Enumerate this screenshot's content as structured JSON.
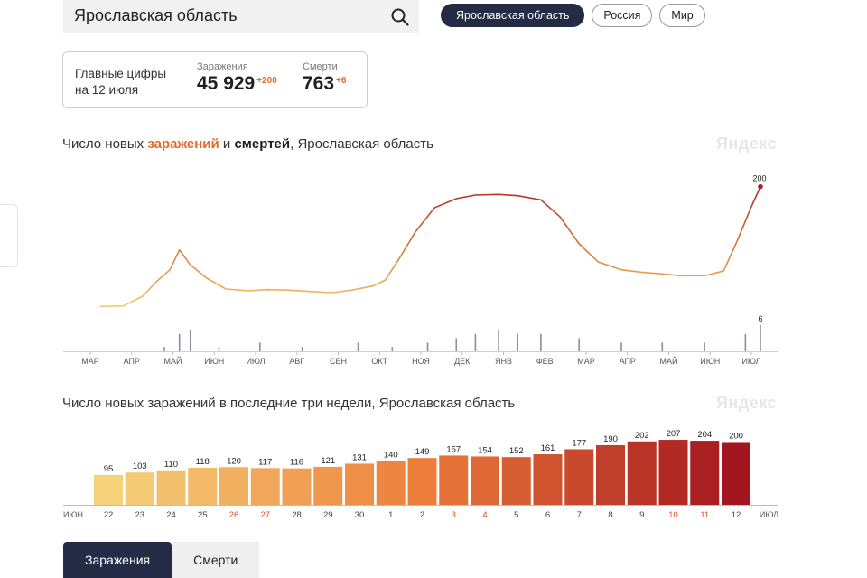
{
  "search": {
    "value": "Ярославская область"
  },
  "region_tabs": [
    {
      "label": "Ярославская область",
      "active": true
    },
    {
      "label": "Россия",
      "active": false
    },
    {
      "label": "Мир",
      "active": false
    }
  ],
  "summary": {
    "label_line1": "Главные цифры",
    "label_line2": "на 12 июля",
    "infections": {
      "title": "Заражения",
      "value": "45 929",
      "delta": "+200"
    },
    "deaths": {
      "title": "Смерти",
      "value": "763",
      "delta": "+6"
    }
  },
  "main_chart": {
    "title_part1": "Число новых ",
    "title_part2": "заражений",
    "title_part3": " и ",
    "title_part4": "смертей",
    "title_part5": ", Ярославская область",
    "watermark": "Яндекс"
  },
  "weeks_chart": {
    "title": "Число новых заражений в последние три недели, Ярославская область",
    "watermark": "Яндекс"
  },
  "bottom_tabs": [
    {
      "label": "Заражения",
      "active": true
    },
    {
      "label": "Смерти",
      "active": false
    }
  ],
  "colors": {
    "accent": "#e8692a",
    "dark": "#232b45",
    "weekend_label": "#e04a2a"
  },
  "chart_data": [
    {
      "type": "line",
      "series": [
        {
          "name": "заражений",
          "points": [
            [
              "2020-03-15",
              1
            ],
            [
              "2020-04-01",
              2
            ],
            [
              "2020-04-15",
              18
            ],
            [
              "2020-04-25",
              42
            ],
            [
              "2020-05-05",
              62
            ],
            [
              "2020-05-12",
              95
            ],
            [
              "2020-05-20",
              70
            ],
            [
              "2020-06-01",
              48
            ],
            [
              "2020-06-15",
              30
            ],
            [
              "2020-07-01",
              27
            ],
            [
              "2020-07-15",
              29
            ],
            [
              "2020-08-01",
              28
            ],
            [
              "2020-08-15",
              26
            ],
            [
              "2020-09-01",
              24
            ],
            [
              "2020-09-15",
              28
            ],
            [
              "2020-10-01",
              35
            ],
            [
              "2020-10-10",
              45
            ],
            [
              "2020-10-20",
              80
            ],
            [
              "2020-11-01",
              125
            ],
            [
              "2020-11-15",
              165
            ],
            [
              "2020-12-01",
              180
            ],
            [
              "2020-12-15",
              186
            ],
            [
              "2021-01-01",
              187
            ],
            [
              "2021-01-15",
              185
            ],
            [
              "2021-02-01",
              178
            ],
            [
              "2021-02-15",
              150
            ],
            [
              "2021-03-01",
              105
            ],
            [
              "2021-03-15",
              75
            ],
            [
              "2021-04-01",
              62
            ],
            [
              "2021-04-15",
              58
            ],
            [
              "2021-05-01",
              55
            ],
            [
              "2021-05-15",
              52
            ],
            [
              "2021-06-01",
              52
            ],
            [
              "2021-06-15",
              60
            ],
            [
              "2021-06-25",
              110
            ],
            [
              "2021-07-05",
              165
            ],
            [
              "2021-07-12",
              200
            ]
          ]
        },
        {
          "name": "смертей",
          "points": [
            [
              "2020-05-01",
              1
            ],
            [
              "2020-05-12",
              4
            ],
            [
              "2020-05-20",
              5
            ],
            [
              "2020-06-10",
              1
            ],
            [
              "2020-07-10",
              2
            ],
            [
              "2020-08-10",
              1
            ],
            [
              "2020-09-20",
              2
            ],
            [
              "2020-10-15",
              1
            ],
            [
              "2020-11-10",
              2
            ],
            [
              "2020-12-01",
              3
            ],
            [
              "2020-12-15",
              4
            ],
            [
              "2021-01-01",
              5
            ],
            [
              "2021-01-15",
              4
            ],
            [
              "2021-02-01",
              4
            ],
            [
              "2021-03-01",
              3
            ],
            [
              "2021-04-01",
              2
            ],
            [
              "2021-05-01",
              2
            ],
            [
              "2021-06-01",
              2
            ],
            [
              "2021-07-01",
              4
            ],
            [
              "2021-07-12",
              6
            ]
          ]
        }
      ],
      "x_ticks": [
        "МАР",
        "АПР",
        "МАЙ",
        "ИЮН",
        "ИЮЛ",
        "АВГ",
        "СЕН",
        "ОКТ",
        "НОЯ",
        "ДЕК",
        "ЯНВ",
        "ФЕВ",
        "МАР",
        "АПР",
        "МАЙ",
        "ИЮН",
        "ИЮЛ"
      ],
      "last_labels": {
        "infections": "200",
        "deaths": "6"
      },
      "xlim": [
        "2020-03-01",
        "2021-07-12"
      ],
      "ylim_infections": [
        0,
        210
      ],
      "ylim_deaths": [
        0,
        6
      ],
      "grid": false
    },
    {
      "type": "bar",
      "categories": [
        "22",
        "23",
        "24",
        "25",
        "26",
        "27",
        "28",
        "29",
        "30",
        "1",
        "2",
        "3",
        "4",
        "5",
        "6",
        "7",
        "8",
        "9",
        "10",
        "11",
        "12"
      ],
      "values": [
        95,
        103,
        110,
        118,
        120,
        117,
        116,
        121,
        131,
        140,
        149,
        157,
        154,
        152,
        161,
        177,
        190,
        202,
        207,
        204,
        200
      ],
      "weekend": [
        false,
        false,
        false,
        false,
        true,
        true,
        false,
        false,
        false,
        false,
        false,
        true,
        true,
        false,
        false,
        false,
        false,
        false,
        true,
        true,
        false
      ],
      "month_left": "ИЮН",
      "month_right": "ИЮЛ",
      "ylim": [
        0,
        210
      ]
    }
  ]
}
